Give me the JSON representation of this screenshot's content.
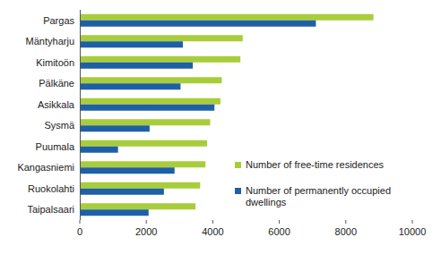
{
  "chart_data": {
    "type": "bar",
    "orientation": "horizontal",
    "categories": [
      "Pargas",
      "Mäntyharju",
      "Kimitoön",
      "Pälkäne",
      "Asikkala",
      "Sysmä",
      "Puumala",
      "Kangasniemi",
      "Ruokolahti",
      "Taipalsaari"
    ],
    "series": [
      {
        "name": "Number of free-time residences",
        "color": "#a8cd3b",
        "values": [
          8830,
          4900,
          4830,
          4270,
          4230,
          3920,
          3830,
          3780,
          3620,
          3480
        ]
      },
      {
        "name": "Number of permanently occupied dwellings",
        "color": "#1f5fa6",
        "values": [
          7100,
          3100,
          3400,
          3030,
          4050,
          2100,
          1150,
          2850,
          2530,
          2070
        ]
      }
    ],
    "xlim": [
      0,
      10000
    ],
    "xticks": [
      0,
      2000,
      4000,
      6000,
      8000,
      10000
    ],
    "grid": false,
    "legend": "right"
  }
}
